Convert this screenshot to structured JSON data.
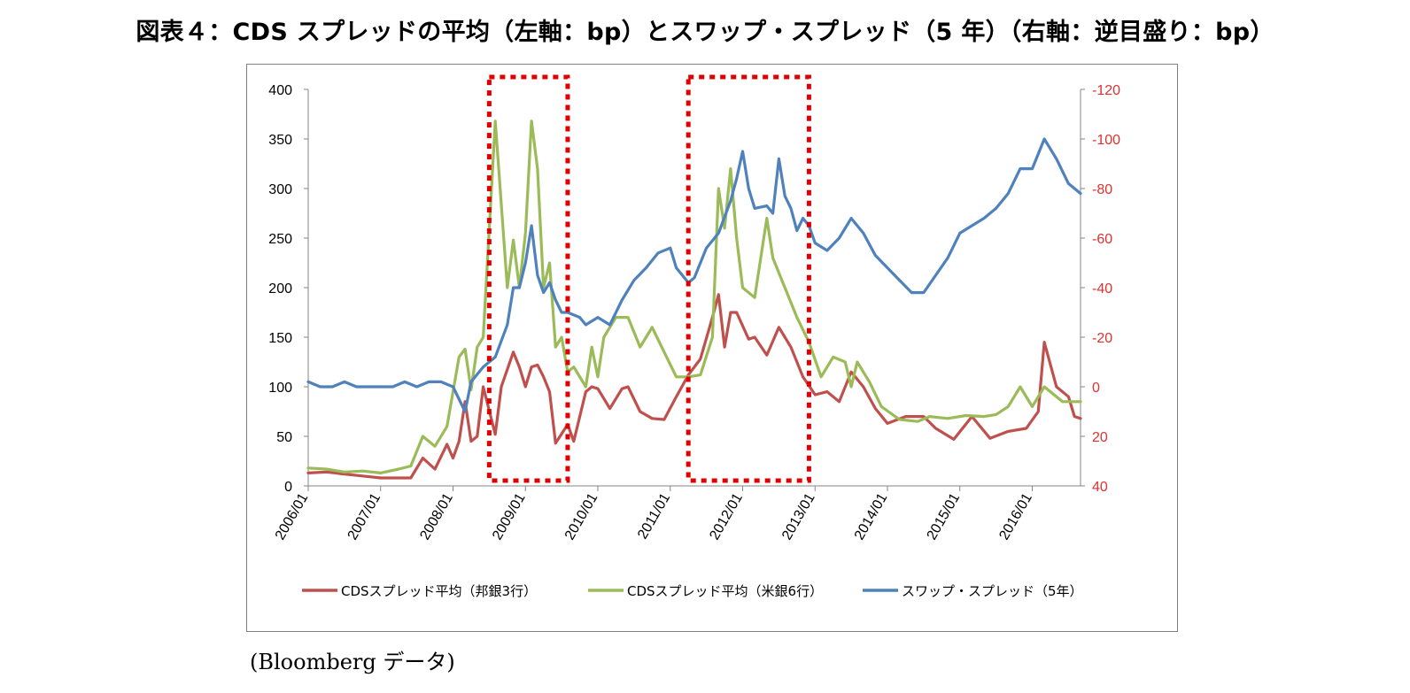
{
  "title": "図表４：CDS スプレッドの平均（左軸：bp）とスワップ・スプレッド（5 年）（右軸：逆目盛り：bp）",
  "source": "(Bloomberg データ)",
  "colors": {
    "red": "#C0504D",
    "green": "#9BBB59",
    "blue": "#4F81BD",
    "highlight": "#E00000",
    "right_axis": "#E03030"
  },
  "chart_data": {
    "type": "line",
    "left_axis": {
      "range": [
        0,
        400
      ],
      "ticks": [
        "0",
        "50",
        "100",
        "150",
        "200",
        "250",
        "300",
        "350",
        "400"
      ]
    },
    "right_axis": {
      "range": [
        40,
        -120
      ],
      "reversed": true,
      "ticks": [
        "40",
        "20",
        "0",
        "-20",
        "-40",
        "-60",
        "-80",
        "-100",
        "-120"
      ]
    },
    "x_axis": {
      "start": "2006/01",
      "end": "2016/09",
      "ticks": [
        "2006/01",
        "2007/01",
        "2008/01",
        "2009/01",
        "2010/01",
        "2011/01",
        "2012/01",
        "2013/01",
        "2014/01",
        "2015/01",
        "2016/01"
      ]
    },
    "highlight_periods": [
      [
        "2008/07",
        "2009/08"
      ],
      [
        "2011/04",
        "2012/12"
      ]
    ],
    "series": [
      {
        "name": "CDSスプレッド平均（邦銀3行）",
        "axis": "left",
        "x": [
          "2006/01",
          "2006/04",
          "2006/07",
          "2006/10",
          "2007/01",
          "2007/04",
          "2007/06",
          "2007/08",
          "2007/10",
          "2007/12",
          "2008/01",
          "2008/02",
          "2008/03",
          "2008/04",
          "2008/05",
          "2008/06",
          "2008/08",
          "2008/09",
          "2008/11",
          "2008/12",
          "2009/01",
          "2009/02",
          "2009/03",
          "2009/04",
          "2009/05",
          "2009/06",
          "2009/08",
          "2009/09",
          "2009/10",
          "2009/11",
          "2009/12",
          "2010/01",
          "2010/03",
          "2010/05",
          "2010/06",
          "2010/08",
          "2010/10",
          "2010/12",
          "2011/02",
          "2011/04",
          "2011/06",
          "2011/08",
          "2011/09",
          "2011/10",
          "2011/11",
          "2011/12",
          "2012/02",
          "2012/03",
          "2012/05",
          "2012/07",
          "2012/09",
          "2012/11",
          "2013/01",
          "2013/03",
          "2013/05",
          "2013/07",
          "2013/09",
          "2013/11",
          "2014/01",
          "2014/04",
          "2014/07",
          "2014/09",
          "2014/12",
          "2015/03",
          "2015/06",
          "2015/09",
          "2015/12",
          "2016/02",
          "2016/03",
          "2016/05",
          "2016/07",
          "2016/08",
          "2016/09"
        ],
        "values": [
          13,
          14,
          12,
          10,
          8,
          8,
          8,
          28,
          17,
          42,
          28,
          45,
          85,
          45,
          50,
          100,
          52,
          100,
          135,
          120,
          100,
          120,
          122,
          110,
          95,
          43,
          62,
          45,
          70,
          95,
          100,
          98,
          78,
          98,
          100,
          75,
          68,
          67,
          90,
          112,
          128,
          170,
          193,
          140,
          175,
          175,
          148,
          150,
          132,
          160,
          140,
          110,
          92,
          95,
          85,
          115,
          100,
          78,
          63,
          70,
          70,
          58,
          47,
          70,
          48,
          55,
          58,
          75,
          145,
          100,
          90,
          70,
          68
        ]
      },
      {
        "name": "CDSスプレッド平均（米銀6行）",
        "axis": "left",
        "x": [
          "2006/01",
          "2006/04",
          "2006/07",
          "2006/10",
          "2007/01",
          "2007/04",
          "2007/06",
          "2007/08",
          "2007/10",
          "2007/12",
          "2008/02",
          "2008/03",
          "2008/04",
          "2008/05",
          "2008/06",
          "2008/08",
          "2008/10",
          "2008/11",
          "2008/12",
          "2009/01",
          "2009/02",
          "2009/03",
          "2009/04",
          "2009/05",
          "2009/06",
          "2009/07",
          "2009/08",
          "2009/09",
          "2009/11",
          "2009/12",
          "2010/01",
          "2010/02",
          "2010/04",
          "2010/06",
          "2010/08",
          "2010/09",
          "2010/10",
          "2010/12",
          "2011/02",
          "2011/04",
          "2011/06",
          "2011/08",
          "2011/09",
          "2011/10",
          "2011/11",
          "2011/12",
          "2012/01",
          "2012/03",
          "2012/05",
          "2012/06",
          "2012/08",
          "2012/10",
          "2012/12",
          "2013/02",
          "2013/04",
          "2013/06",
          "2013/07",
          "2013/08",
          "2013/10",
          "2013/12",
          "2014/03",
          "2014/06",
          "2014/08",
          "2014/11",
          "2015/02",
          "2015/05",
          "2015/07",
          "2015/09",
          "2015/11",
          "2016/01",
          "2016/03",
          "2016/06",
          "2016/09"
        ],
        "values": [
          18,
          17,
          14,
          15,
          13,
          17,
          20,
          50,
          40,
          60,
          130,
          138,
          97,
          140,
          150,
          368,
          200,
          248,
          200,
          255,
          368,
          320,
          200,
          225,
          140,
          150,
          115,
          120,
          100,
          140,
          110,
          150,
          170,
          170,
          140,
          150,
          160,
          135,
          110,
          110,
          112,
          150,
          300,
          260,
          320,
          250,
          200,
          190,
          270,
          230,
          200,
          170,
          145,
          110,
          130,
          125,
          100,
          125,
          105,
          80,
          67,
          65,
          70,
          68,
          71,
          70,
          72,
          80,
          100,
          80,
          100,
          85,
          85
        ]
      },
      {
        "name": "スワップ・スプレッド（5年）",
        "axis": "right",
        "x": [
          "2006/01",
          "2006/03",
          "2006/05",
          "2006/07",
          "2006/09",
          "2006/11",
          "2007/01",
          "2007/03",
          "2007/05",
          "2007/07",
          "2007/09",
          "2007/11",
          "2008/01",
          "2008/03",
          "2008/04",
          "2008/06",
          "2008/08",
          "2008/10",
          "2008/11",
          "2008/12",
          "2009/01",
          "2009/02",
          "2009/03",
          "2009/04",
          "2009/05",
          "2009/06",
          "2009/07",
          "2009/08",
          "2009/10",
          "2009/11",
          "2010/01",
          "2010/03",
          "2010/05",
          "2010/07",
          "2010/09",
          "2010/11",
          "2011/01",
          "2011/02",
          "2011/04",
          "2011/05",
          "2011/07",
          "2011/09",
          "2011/11",
          "2011/12",
          "2012/01",
          "2012/02",
          "2012/03",
          "2012/05",
          "2012/06",
          "2012/07",
          "2012/08",
          "2012/09",
          "2012/10",
          "2012/11",
          "2012/12",
          "2013/01",
          "2013/03",
          "2013/05",
          "2013/07",
          "2013/09",
          "2013/11",
          "2014/01",
          "2014/03",
          "2014/05",
          "2014/07",
          "2014/09",
          "2014/11",
          "2015/01",
          "2015/03",
          "2015/05",
          "2015/07",
          "2015/09",
          "2015/11",
          "2016/01",
          "2016/03",
          "2016/05",
          "2016/07",
          "2016/09"
        ],
        "values": [
          -2,
          0,
          0,
          -2,
          0,
          0,
          0,
          0,
          -2,
          0,
          -2,
          -2,
          0,
          10,
          -2,
          -8,
          -12,
          -25,
          -40,
          -40,
          -50,
          -65,
          -45,
          -38,
          -42,
          -35,
          -30,
          -30,
          -28,
          -25,
          -28,
          -25,
          -35,
          -43,
          -48,
          -54,
          -56,
          -48,
          -42,
          -44,
          -56,
          -62,
          -75,
          -84,
          -95,
          -80,
          -72,
          -73,
          -70,
          -92,
          -77,
          -72,
          -63,
          -68,
          -65,
          -58,
          -55,
          -60,
          -68,
          -62,
          -53,
          -48,
          -43,
          -38,
          -38,
          -45,
          -52,
          -62,
          -65,
          -68,
          -72,
          -78,
          -88,
          -88,
          -100,
          -92,
          -82,
          -78
        ]
      }
    ]
  }
}
